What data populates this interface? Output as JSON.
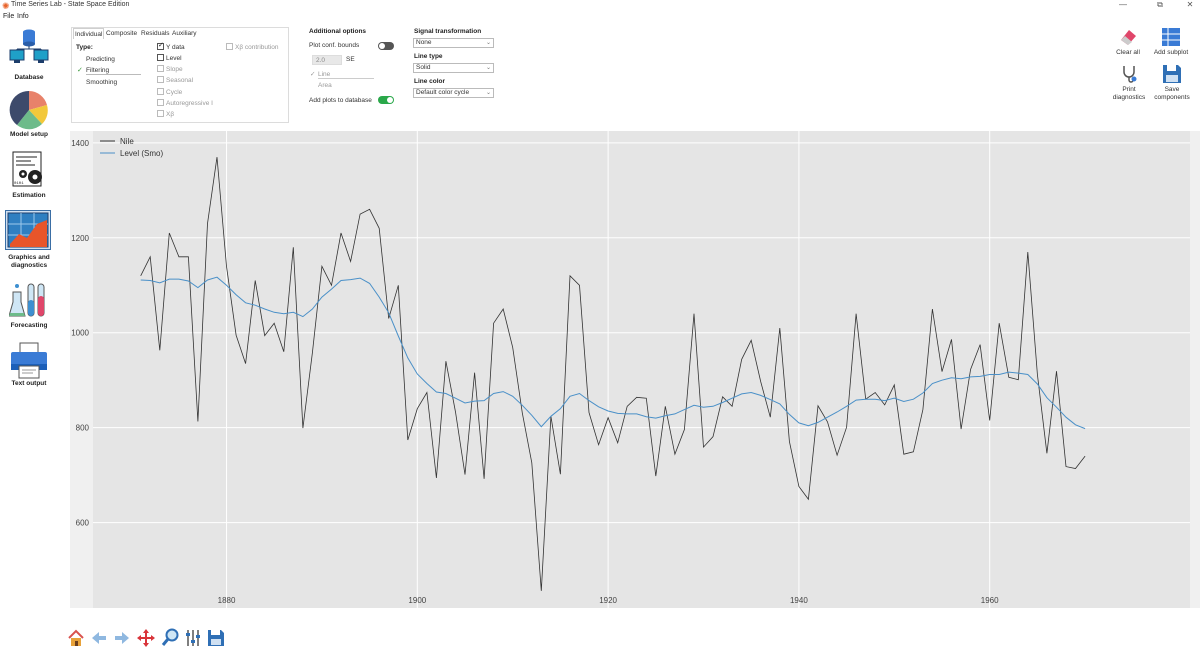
{
  "window": {
    "title": "Time Series Lab - State Space Edition",
    "controls": [
      "—",
      "⧉",
      "✕"
    ]
  },
  "menu": [
    "File",
    "Info"
  ],
  "sidebar": [
    {
      "label": "Database",
      "icon": "database-icon"
    },
    {
      "label": "Model setup",
      "icon": "pie-chart-icon"
    },
    {
      "label": "Estimation",
      "icon": "estimation-gears-icon"
    },
    {
      "label": "Graphics and diagnostics",
      "icon": "graphics-chart-icon",
      "active": true
    },
    {
      "label": "Forecasting",
      "icon": "forecasting-flasks-icon"
    },
    {
      "label": "Text output",
      "icon": "printer-icon"
    }
  ],
  "options_panel": {
    "tabs": [
      "Individual",
      "Composite",
      "Residuals",
      "Auxiliary"
    ],
    "active_tab": "Individual",
    "type_label": "Type:",
    "types": [
      "Predicting",
      "Filtering",
      "Smoothing"
    ],
    "selected_type": "Filtering",
    "components": [
      {
        "label": "Y data",
        "checked": true,
        "enabled": true
      },
      {
        "label": "Level",
        "checked": false,
        "enabled": true
      },
      {
        "label": "Slope",
        "checked": false,
        "enabled": false
      },
      {
        "label": "Seasonal",
        "checked": false,
        "enabled": false
      },
      {
        "label": "Cycle",
        "checked": false,
        "enabled": false
      },
      {
        "label": "Autoregressive I",
        "checked": false,
        "enabled": false
      },
      {
        "label": "Xβ",
        "checked": false,
        "enabled": false
      }
    ],
    "xb_contribution": {
      "label": "Xβ contribution",
      "checked": false,
      "enabled": false
    }
  },
  "additional_options": {
    "title": "Additional options",
    "plot_conf_bounds": {
      "label": "Plot conf. bounds",
      "on": false
    },
    "se_value": "2.0",
    "se_label": "SE",
    "line_label": "Line",
    "area_label": "Area",
    "add_plots": {
      "label": "Add plots to database",
      "on": true
    }
  },
  "signal": {
    "transformation_title": "Signal transformation",
    "transformation_value": "None",
    "line_type_title": "Line type",
    "line_type_value": "Solid",
    "line_color_title": "Line color",
    "line_color_value": "Default color cycle"
  },
  "tools": {
    "clear_all": "Clear all",
    "add_subplot": "Add subplot",
    "print_diagnostics": "Print diagnostics",
    "save_components": "Save components"
  },
  "bottom_toolbar": [
    "home-icon",
    "back-arrow-icon",
    "forward-arrow-icon",
    "pan-icon",
    "zoom-icon",
    "configure-subplots-icon",
    "save-figure-icon"
  ],
  "chart_data": {
    "type": "line",
    "xlim": [
      1866,
      1981
    ],
    "ylim": [
      420,
      1425
    ],
    "x_ticks": [
      1880,
      1900,
      1920,
      1940,
      1960
    ],
    "y_ticks": [
      600,
      800,
      1000,
      1200,
      1400
    ],
    "grid": true,
    "legend_position": "top-left",
    "series": [
      {
        "name": "Nile",
        "color": "#333333",
        "x_start": 1871,
        "values": [
          1120,
          1160,
          963,
          1210,
          1160,
          1160,
          813,
          1230,
          1370,
          1140,
          995,
          935,
          1110,
          994,
          1020,
          960,
          1180,
          799,
          958,
          1140,
          1100,
          1210,
          1150,
          1250,
          1260,
          1220,
          1030,
          1100,
          774,
          840,
          874,
          694,
          940,
          833,
          701,
          916,
          692,
          1020,
          1050,
          969,
          831,
          726,
          456,
          824,
          702,
          1120,
          1100,
          832,
          764,
          821,
          768,
          845,
          864,
          862,
          698,
          845,
          744,
          796,
          1040,
          759,
          781,
          865,
          845,
          944,
          984,
          897,
          822,
          1010,
          771,
          676,
          649,
          846,
          812,
          742,
          801,
          1040,
          860,
          874,
          848,
          890,
          744,
          749,
          838,
          1050,
          918,
          986,
          797,
          923,
          975,
          815,
          1020,
          906,
          901,
          1170,
          912,
          746,
          919,
          718,
          714,
          740
        ]
      },
      {
        "name": "Level (Smo)",
        "color": "#4a90c8",
        "x_start": 1871,
        "values": [
          1111,
          1110,
          1105,
          1113,
          1113,
          1109,
          1095,
          1111,
          1117,
          1100,
          1080,
          1063,
          1058,
          1050,
          1043,
          1040,
          1043,
          1034,
          1050,
          1075,
          1092,
          1110,
          1112,
          1115,
          1104,
          1075,
          1042,
          993,
          947,
          913,
          893,
          875,
          872,
          862,
          852,
          856,
          857,
          872,
          876,
          866,
          847,
          826,
          802,
          824,
          840,
          866,
          872,
          857,
          844,
          835,
          830,
          829,
          829,
          823,
          820,
          825,
          829,
          838,
          847,
          843,
          845,
          853,
          862,
          871,
          874,
          868,
          859,
          850,
          828,
          810,
          804,
          811,
          822,
          833,
          845,
          858,
          860,
          860,
          857,
          862,
          855,
          860,
          873,
          893,
          900,
          905,
          903,
          907,
          908,
          912,
          912,
          917,
          915,
          912,
          892,
          863,
          843,
          822,
          806,
          798
        ]
      }
    ]
  }
}
